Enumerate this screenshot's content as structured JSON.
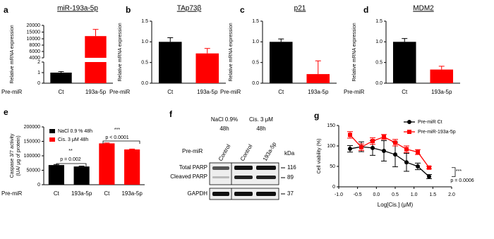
{
  "chart_data": [
    {
      "type": "bar",
      "label": "a",
      "title": "miR-193a-5p",
      "ylabel": "Relative mRNA expression",
      "xlabel": "Pre-miR",
      "categories": [
        "Ct",
        "193a-5p"
      ],
      "values": [
        1.0,
        12000
      ],
      "errors": [
        0.1,
        5000
      ],
      "colors": [
        "#000000",
        "#ff0000"
      ],
      "y_segments": [
        {
          "ylim": [
            0,
            2
          ],
          "yticks": [
            0,
            1,
            2
          ]
        },
        {
          "ylim": [
            4000,
            10000
          ],
          "yticks": [
            4000,
            6000,
            8000,
            10000
          ]
        },
        {
          "ylim": [
            10000,
            20000
          ],
          "yticks": [
            15000,
            20000
          ]
        }
      ]
    },
    {
      "type": "bar",
      "label": "b",
      "title": "TAp73β",
      "ylabel": "Relative mRNA expression",
      "xlabel": "Pre-miR",
      "categories": [
        "Ct",
        "193a-5p"
      ],
      "values": [
        1.0,
        0.72
      ],
      "errors": [
        0.1,
        0.12
      ],
      "colors": [
        "#000000",
        "#ff0000"
      ],
      "ylim": [
        0,
        1.5
      ],
      "yticks": [
        {
          "value": 0,
          "label": "0.0"
        },
        0.5,
        {
          "value": 1,
          "label": "1.0"
        },
        1.5
      ]
    },
    {
      "type": "bar",
      "label": "c",
      "title": "p21",
      "ylabel": "Relative mRNA expression",
      "xlabel": "Pre-miR",
      "categories": [
        "Ct",
        "193a-5p"
      ],
      "values": [
        1.0,
        0.22
      ],
      "errors": [
        0.07,
        0.32
      ],
      "colors": [
        "#000000",
        "#ff0000"
      ],
      "ylim": [
        0,
        1.5
      ],
      "yticks": [
        {
          "value": 0,
          "label": "0.0"
        },
        0.5,
        {
          "value": 1,
          "label": "1.0"
        },
        1.5
      ]
    },
    {
      "type": "bar",
      "label": "d",
      "title": "MDM2",
      "ylabel": "Relative mRNA expression",
      "xlabel": "Pre-miR",
      "categories": [
        "Ct",
        "193a-5p"
      ],
      "values": [
        1.0,
        0.33
      ],
      "errors": [
        0.08,
        0.08
      ],
      "colors": [
        "#000000",
        "#ff0000"
      ],
      "ylim": [
        0,
        1.5
      ],
      "yticks": [
        {
          "value": 0,
          "label": "0.0"
        },
        0.5,
        {
          "value": 1,
          "label": "1.0"
        },
        1.5
      ]
    },
    {
      "type": "bar",
      "label": "e",
      "ylabel": [
        "Caspase 3/7 activity",
        "(UA/ μg of protein)"
      ],
      "xlabel": "Pre-miR",
      "categories": [
        "Ct",
        "193a-5p",
        "Ct",
        "193a-5p"
      ],
      "series": [
        {
          "name": "NaCl 0.9 % 48h",
          "color": "#000000",
          "values": [
            68000,
            63000,
            null,
            null
          ],
          "errors": [
            2000,
            1500,
            null,
            null
          ]
        },
        {
          "name": "Cis. 3 μM 48h",
          "color": "#ff0000",
          "values": [
            null,
            null,
            143000,
            122000
          ],
          "errors": [
            null,
            null,
            1500,
            1500
          ]
        }
      ],
      "ylim": [
        0,
        200000
      ],
      "yticks": [
        0,
        50000,
        100000,
        150000,
        200000
      ],
      "annotations": [
        "**",
        "p = 0.002",
        "***",
        "p < 0.0001"
      ]
    },
    {
      "type": "scatter",
      "label": "g",
      "xlabel": "Log[Cis.] (μM)",
      "ylabel": "Cell viability (%)",
      "x": [
        -0.7,
        -0.4,
        -0.1,
        0.2,
        0.5,
        0.8,
        1.1,
        1.4
      ],
      "series": [
        {
          "name": "Pre-miR Ct",
          "color": "#000000",
          "marker": "circle",
          "values": [
            93,
            98,
            95,
            88,
            79,
            60,
            50,
            25
          ],
          "errors": [
            8,
            12,
            18,
            25,
            30,
            22,
            8,
            5
          ]
        },
        {
          "name": "Pre-miR-193a-5p",
          "color": "#ff0000",
          "marker": "square",
          "values": [
            127,
            97,
            112,
            122,
            108,
            92,
            85,
            47
          ],
          "errors": [
            8,
            8,
            8,
            6,
            8,
            8,
            6,
            3
          ]
        }
      ],
      "xlim": [
        -1,
        2
      ],
      "xticks": [
        {
          "value": -1,
          "label": "-1.0"
        },
        -0.5,
        {
          "value": 0,
          "label": "0.0"
        },
        0.5,
        {
          "value": 1,
          "label": "1.0"
        },
        1.5,
        {
          "value": 2,
          "label": "2.0"
        }
      ],
      "ylim": [
        0,
        150
      ],
      "yticks": [
        0,
        50,
        100,
        150
      ],
      "annotations": [
        "***",
        "p = 0.0006"
      ]
    }
  ],
  "blot": {
    "label": "f",
    "conditions": [
      {
        "name": "NaCl 0.9%",
        "time": "48h"
      },
      {
        "name": "Cis. 3 μM",
        "time": "48h"
      }
    ],
    "row_label": "Pre-miR",
    "lanes": [
      "Control",
      "Control",
      "193a-5p"
    ],
    "unit": "kDa",
    "bands": [
      {
        "name": "Total PARP",
        "kda": 116
      },
      {
        "name": "Cleaved PARP",
        "kda": 89
      },
      {
        "name": "GAPDH",
        "kda": 37
      }
    ]
  }
}
